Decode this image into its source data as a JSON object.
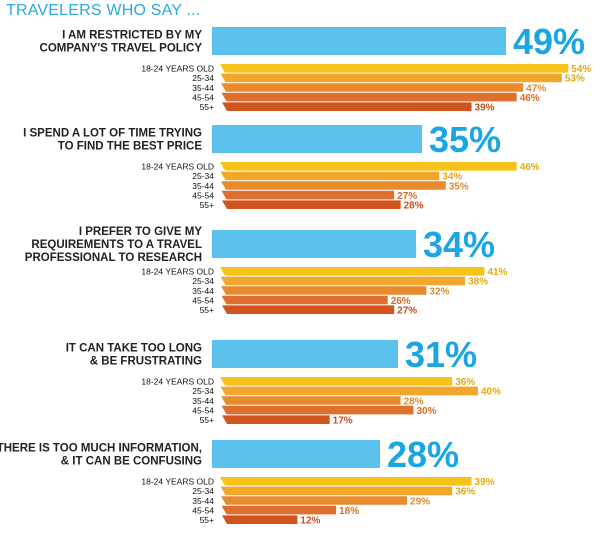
{
  "header": {
    "title": "TRAVELERS WHO SAY ..."
  },
  "colors": {
    "overall": "#5bc2ee",
    "age_bands": [
      "#f7c21a",
      "#f2a72c",
      "#e88a2e",
      "#df6f2c",
      "#d1541f"
    ],
    "age_text": [
      "#e5a90f",
      "#e5a90f",
      "#e08a28",
      "#d96a26",
      "#c9501c"
    ],
    "big_label": "#1aa6e2"
  },
  "chart_data": {
    "type": "bar",
    "title": "TRAVELERS WHO SAY ...",
    "unit": "%",
    "age_groups": [
      "18-24 YEARS OLD",
      "25-34",
      "35-44",
      "45-54",
      "55+"
    ],
    "statements": [
      {
        "lines": [
          "I AM RESTRICTED BY MY",
          "COMPANY'S TRAVEL POLICY"
        ],
        "overall": 49,
        "by_age": [
          54,
          53,
          47,
          46,
          39
        ]
      },
      {
        "lines": [
          "I SPEND A LOT OF TIME TRYING",
          "TO FIND THE BEST PRICE"
        ],
        "overall": 35,
        "by_age": [
          46,
          34,
          35,
          27,
          28
        ]
      },
      {
        "lines": [
          "I PREFER TO GIVE MY",
          "REQUIREMENTS TO A TRAVEL",
          "PROFESSIONAL TO RESEARCH"
        ],
        "overall": 34,
        "by_age": [
          41,
          38,
          32,
          26,
          27
        ]
      },
      {
        "lines": [
          "IT CAN TAKE TOO LONG",
          "& BE FRUSTRATING"
        ],
        "overall": 31,
        "by_age": [
          36,
          40,
          28,
          30,
          17
        ]
      },
      {
        "lines": [
          "THERE IS TOO MUCH INFORMATION,",
          "& IT CAN BE CONFUSING"
        ],
        "overall": 28,
        "by_age": [
          39,
          36,
          29,
          18,
          12
        ]
      }
    ]
  }
}
